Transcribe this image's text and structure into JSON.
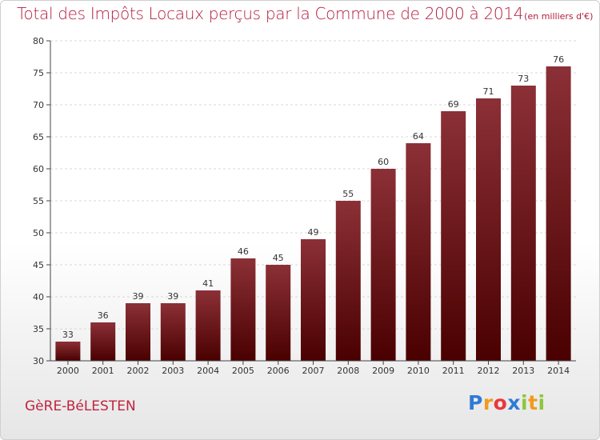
{
  "chart_data": {
    "type": "bar",
    "title": "Total des Impôts Locaux perçus par la Commune de 2000 à 2014",
    "unit_note": "(en milliers d'€)",
    "categories": [
      "2000",
      "2001",
      "2002",
      "2003",
      "2004",
      "2005",
      "2006",
      "2007",
      "2008",
      "2009",
      "2010",
      "2011",
      "2012",
      "2013",
      "2014"
    ],
    "values": [
      33,
      36,
      39,
      39,
      41,
      46,
      45,
      49,
      55,
      60,
      64,
      69,
      71,
      73,
      76
    ],
    "ylim": [
      30,
      80
    ],
    "yticks": [
      30,
      35,
      40,
      45,
      50,
      55,
      60,
      65,
      70,
      75,
      80
    ],
    "xlabel": "",
    "ylabel": "",
    "grid": "horizontal",
    "bar_color_top": "#8b3036",
    "bar_color_bottom": "#4a0000"
  },
  "commune_name": "GèRE-BéLESTEN",
  "logo": {
    "letters": [
      "P",
      "r",
      "o",
      "x",
      "i",
      "t",
      "i"
    ],
    "colors": [
      "#2e7bd6",
      "#f29a1f",
      "#e8383d",
      "#2e7bd6",
      "#8cc63e",
      "#f29a1f",
      "#8cc63e"
    ]
  }
}
